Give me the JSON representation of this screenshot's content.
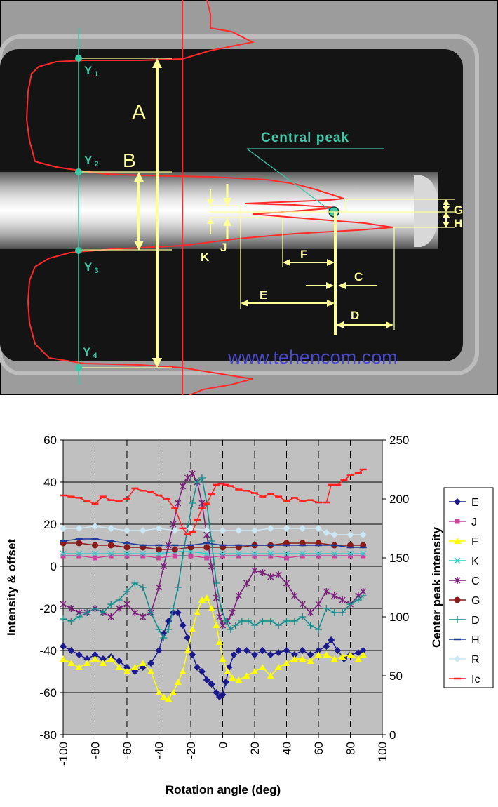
{
  "diagram": {
    "background": "#141414",
    "trace_color": "#ff2a2a",
    "annotation_color": "#ffff99",
    "label_color": "#3ec8a8",
    "labels": {
      "y1": "Y",
      "y1_sub": "1",
      "y2": "Y",
      "y2_sub": "2",
      "y3": "Y",
      "y3_sub": "3",
      "y4": "Y",
      "y4_sub": "4",
      "central_peak": "Central peak",
      "A": "A",
      "B": "B",
      "C": "C",
      "D": "D",
      "E": "E",
      "F": "F",
      "G": "G",
      "H": "H",
      "J": "J",
      "K": "K"
    },
    "watermark": "www.tehencom.com",
    "watermark_color": "#4a4acc"
  },
  "chart_data": {
    "type": "line",
    "background": "#c0c0c0",
    "xlabel": "Rotation angle (deg)",
    "ylabel": "Intensity & offset",
    "y2label": "Center peak intensity",
    "xlim": [
      -100,
      100
    ],
    "ylim": [
      -80,
      60
    ],
    "y2lim": [
      0,
      250
    ],
    "xticks": [
      "-100",
      "-80",
      "-60",
      "-40",
      "-20",
      "0",
      "20",
      "40",
      "60",
      "80",
      "100"
    ],
    "yticks": [
      "60",
      "40",
      "20",
      "0",
      "-20",
      "-40",
      "-60",
      "-80"
    ],
    "y2ticks": [
      "250",
      "200",
      "150",
      "100",
      "50",
      "0"
    ],
    "legend_position": "right",
    "series": [
      {
        "name": "E",
        "color": "#1a1a8c",
        "marker": "diamond",
        "axis": "left",
        "x": [
          -100,
          -95,
          -90,
          -85,
          -80,
          -75,
          -70,
          -65,
          -60,
          -55,
          -50,
          -45,
          -40,
          -37,
          -34,
          -31,
          -28,
          -25,
          -22,
          -19,
          -16,
          -13,
          -10,
          -7,
          -4,
          -2,
          0,
          2,
          4,
          7,
          10,
          15,
          20,
          25,
          30,
          35,
          40,
          45,
          50,
          55,
          60,
          65,
          68,
          72,
          76,
          80,
          85,
          88
        ],
        "y": [
          -38,
          -40,
          -42,
          -44,
          -42,
          -44,
          -43,
          -45,
          -48,
          -50,
          -48,
          -46,
          -40,
          -32,
          -26,
          -22,
          -22,
          -28,
          -34,
          -42,
          -48,
          -50,
          -54,
          -56,
          -60,
          -62,
          -61,
          -55,
          -48,
          -42,
          -40,
          -40,
          -42,
          -40,
          -42,
          -41,
          -40,
          -42,
          -40,
          -42,
          -40,
          -38,
          -35,
          -40,
          -44,
          -42,
          -41,
          -40
        ]
      },
      {
        "name": "J",
        "color": "#cc4499",
        "marker": "square",
        "axis": "left",
        "x": [
          -100,
          -90,
          -80,
          -70,
          -60,
          -50,
          -40,
          -30,
          -20,
          -10,
          0,
          10,
          20,
          30,
          40,
          50,
          60,
          70,
          80,
          88
        ],
        "y": [
          5,
          5,
          4,
          5,
          5,
          5,
          4,
          5,
          5,
          4,
          5,
          5,
          5,
          5,
          4,
          5,
          5,
          5,
          5,
          5
        ]
      },
      {
        "name": "F",
        "color": "#ffff00",
        "marker": "triangle",
        "axis": "left",
        "x": [
          -100,
          -95,
          -90,
          -85,
          -80,
          -75,
          -70,
          -65,
          -60,
          -55,
          -50,
          -45,
          -40,
          -37,
          -34,
          -31,
          -28,
          -25,
          -22,
          -19,
          -16,
          -13,
          -10,
          -7,
          -4,
          -2,
          0,
          3,
          6,
          10,
          15,
          20,
          25,
          30,
          35,
          40,
          45,
          50,
          55,
          60,
          65,
          70,
          75,
          80,
          85,
          88
        ],
        "y": [
          -44,
          -46,
          -48,
          -46,
          -44,
          -46,
          -44,
          -48,
          -50,
          -48,
          -46,
          -50,
          -60,
          -62,
          -63,
          -60,
          -55,
          -50,
          -40,
          -30,
          -22,
          -16,
          -15,
          -20,
          -28,
          -36,
          -44,
          -50,
          -53,
          -54,
          -52,
          -50,
          -48,
          -52,
          -48,
          -46,
          -44,
          -44,
          -45,
          -42,
          -42,
          -44,
          -43,
          -42,
          -44,
          -42
        ]
      },
      {
        "name": "K",
        "color": "#33cccc",
        "marker": "x",
        "axis": "left",
        "x": [
          -100,
          -90,
          -80,
          -70,
          -60,
          -50,
          -40,
          -30,
          -20,
          -10,
          0,
          10,
          20,
          30,
          40,
          50,
          60,
          70,
          80,
          88
        ],
        "y": [
          6,
          6,
          6,
          6,
          6,
          6,
          6,
          7,
          7,
          6,
          6,
          6,
          6,
          6,
          6,
          6,
          6,
          6,
          6,
          6
        ]
      },
      {
        "name": "C",
        "color": "#7a1f7a",
        "marker": "star",
        "axis": "left",
        "x": [
          -100,
          -95,
          -90,
          -85,
          -80,
          -75,
          -70,
          -65,
          -60,
          -55,
          -50,
          -45,
          -40,
          -37,
          -34,
          -31,
          -28,
          -25,
          -22,
          -19,
          -16,
          -13,
          -10,
          -7,
          -4,
          -2,
          0,
          3,
          6,
          10,
          15,
          20,
          25,
          30,
          35,
          40,
          45,
          50,
          55,
          60,
          65,
          70,
          75,
          80,
          85,
          88
        ],
        "y": [
          -18,
          -20,
          -22,
          -22,
          -20,
          -22,
          -24,
          -20,
          -18,
          -22,
          -24,
          -22,
          -10,
          0,
          10,
          20,
          30,
          38,
          42,
          44,
          40,
          30,
          15,
          0,
          -15,
          -24,
          -28,
          -26,
          -22,
          -14,
          -8,
          -2,
          -3,
          -5,
          -4,
          -8,
          -14,
          -18,
          -22,
          -18,
          -12,
          -14,
          -16,
          -18,
          -14,
          -12
        ]
      },
      {
        "name": "G",
        "color": "#8b1a1a",
        "marker": "circle",
        "axis": "left",
        "x": [
          -100,
          -90,
          -80,
          -70,
          -60,
          -50,
          -40,
          -30,
          -20,
          -10,
          0,
          10,
          20,
          30,
          40,
          50,
          60,
          70,
          80,
          88
        ],
        "y": [
          11,
          11,
          10,
          10,
          9,
          9,
          8,
          8,
          9,
          9,
          9,
          9,
          10,
          10,
          11,
          11,
          11,
          10,
          10,
          10
        ]
      },
      {
        "name": "D",
        "color": "#128a8a",
        "marker": "plus",
        "axis": "left",
        "x": [
          -100,
          -95,
          -90,
          -85,
          -80,
          -75,
          -70,
          -65,
          -60,
          -55,
          -50,
          -45,
          -40,
          -37,
          -34,
          -31,
          -28,
          -25,
          -22,
          -19,
          -16,
          -13,
          -10,
          -7,
          -4,
          -1,
          2,
          5,
          8,
          12,
          16,
          20,
          25,
          30,
          35,
          40,
          45,
          50,
          55,
          60,
          65,
          70,
          75,
          80,
          85,
          88
        ],
        "y": [
          -25,
          -26,
          -24,
          -22,
          -20,
          -22,
          -18,
          -16,
          -12,
          -8,
          -10,
          -22,
          -30,
          -34,
          -30,
          -20,
          -10,
          5,
          18,
          30,
          40,
          42,
          30,
          12,
          -8,
          -20,
          -26,
          -30,
          -28,
          -26,
          -26,
          -28,
          -26,
          -26,
          -28,
          -26,
          -26,
          -24,
          -28,
          -30,
          -20,
          -22,
          -22,
          -18,
          -16,
          -14
        ]
      },
      {
        "name": "H",
        "color": "#1f3a99",
        "marker": "dash",
        "axis": "left",
        "x": [
          -100,
          -90,
          -80,
          -70,
          -60,
          -50,
          -40,
          -30,
          -20,
          -10,
          0,
          10,
          20,
          30,
          40,
          50,
          60,
          70,
          80,
          88
        ],
        "y": [
          12,
          13,
          13,
          12,
          11,
          10,
          10,
          10,
          10,
          11,
          10,
          10,
          10,
          10,
          10,
          10,
          10,
          10,
          9,
          9
        ]
      },
      {
        "name": "R",
        "color": "#cce8f4",
        "marker": "diamond",
        "axis": "left",
        "x": [
          -100,
          -90,
          -80,
          -70,
          -60,
          -50,
          -40,
          -30,
          -20,
          -10,
          0,
          10,
          20,
          30,
          40,
          50,
          60,
          65,
          70,
          80,
          88
        ],
        "y": [
          18,
          18,
          19,
          18,
          17,
          17,
          18,
          17,
          18,
          17,
          17,
          17,
          17,
          18,
          18,
          18,
          18,
          16,
          15,
          15,
          15
        ]
      },
      {
        "name": "Ic",
        "color": "#ff2020",
        "marker": "dash",
        "axis": "right",
        "x": [
          -100,
          -95,
          -90,
          -85,
          -80,
          -75,
          -70,
          -65,
          -60,
          -55,
          -50,
          -45,
          -40,
          -35,
          -30,
          -25,
          -22,
          -19,
          -16,
          -13,
          -10,
          -7,
          -4,
          -1,
          2,
          5,
          10,
          15,
          20,
          25,
          30,
          35,
          40,
          45,
          50,
          55,
          60,
          65,
          68,
          72,
          76,
          80,
          85,
          88
        ],
        "y": [
          203,
          202,
          201,
          198,
          196,
          202,
          199,
          198,
          200,
          209,
          207,
          206,
          203,
          200,
          192,
          175,
          170,
          172,
          182,
          192,
          196,
          204,
          212,
          213,
          212,
          211,
          208,
          207,
          205,
          202,
          204,
          202,
          198,
          201,
          198,
          199,
          197,
          197,
          212,
          212,
          216,
          220,
          222,
          225
        ]
      }
    ]
  }
}
